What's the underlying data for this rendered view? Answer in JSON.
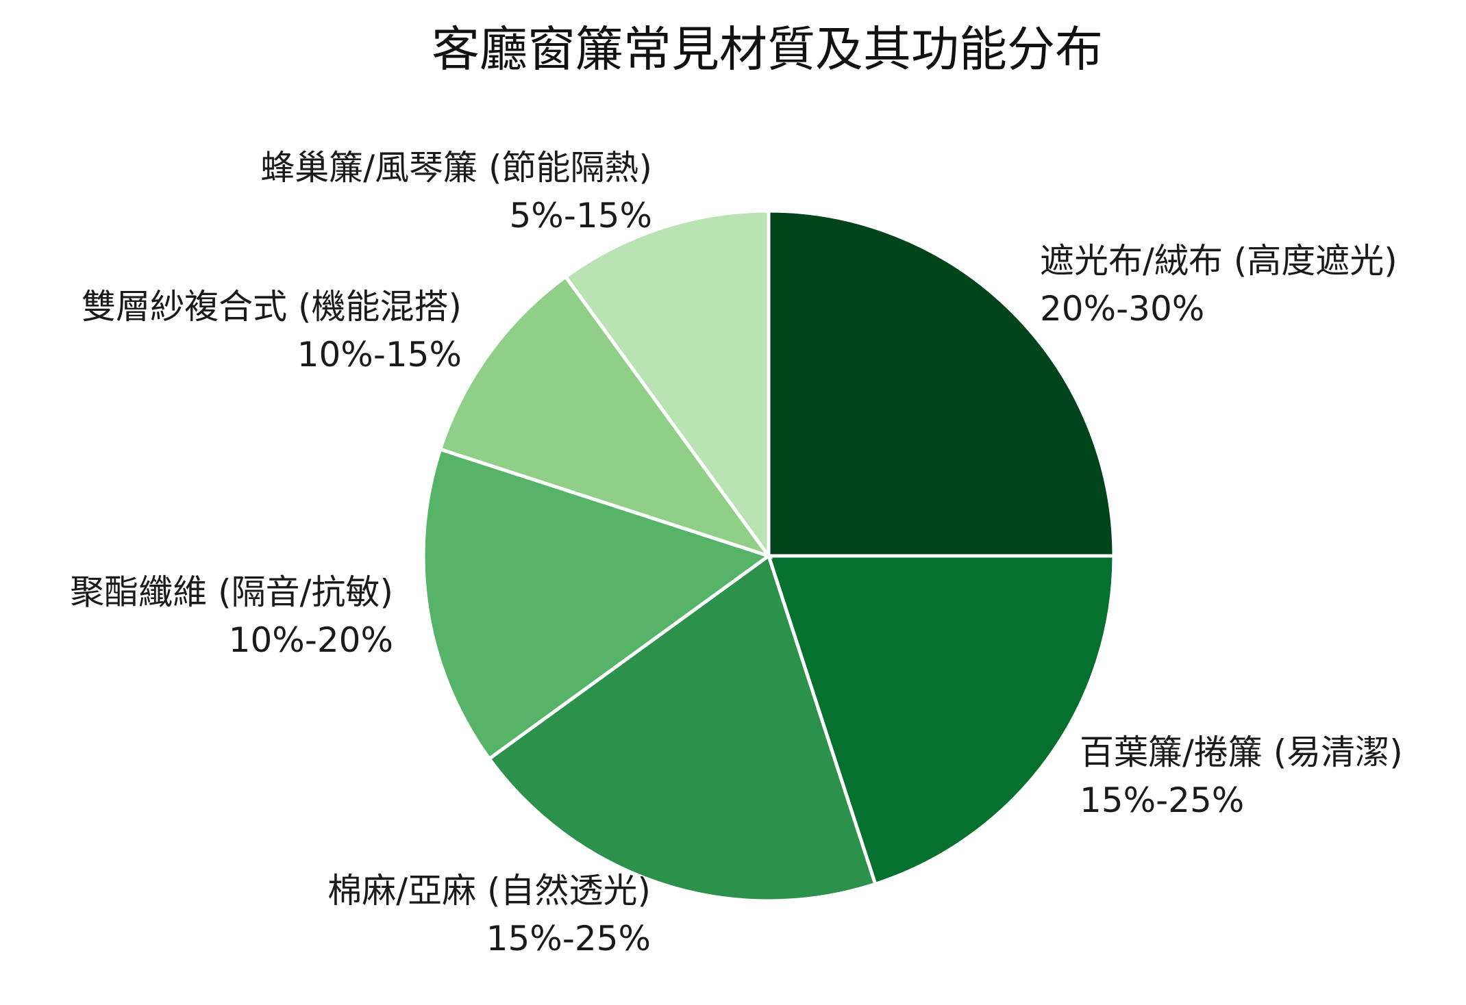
{
  "chart_data": {
    "type": "pie",
    "title": "客廳窗簾常見材質及其功能分布",
    "start": "12 o'clock",
    "direction": "clockwise",
    "slices": [
      {
        "label": "遮光布/絨布 (高度遮光)",
        "range": "20%-30%",
        "value": 25,
        "color": "#00441b"
      },
      {
        "label": "百葉簾/捲簾 (易清潔)",
        "range": "15%-25%",
        "value": 20,
        "color": "#06712e"
      },
      {
        "label": "棉麻/亞麻 (自然透光)",
        "range": "15%-25%",
        "value": 20,
        "color": "#2b914b"
      },
      {
        "label": "聚酯纖維 (隔音/抗敏)",
        "range": "10%-20%",
        "value": 15,
        "color": "#56b468"
      },
      {
        "label": "雙層紗複合式 (機能混搭)",
        "range": "10%-15%",
        "value": 10,
        "color": "#8fcf88"
      },
      {
        "label": "蜂巢簾/風琴簾 (節能隔熱)",
        "range": "5%-15%",
        "value": 10,
        "color": "#b9e3b2"
      }
    ]
  }
}
